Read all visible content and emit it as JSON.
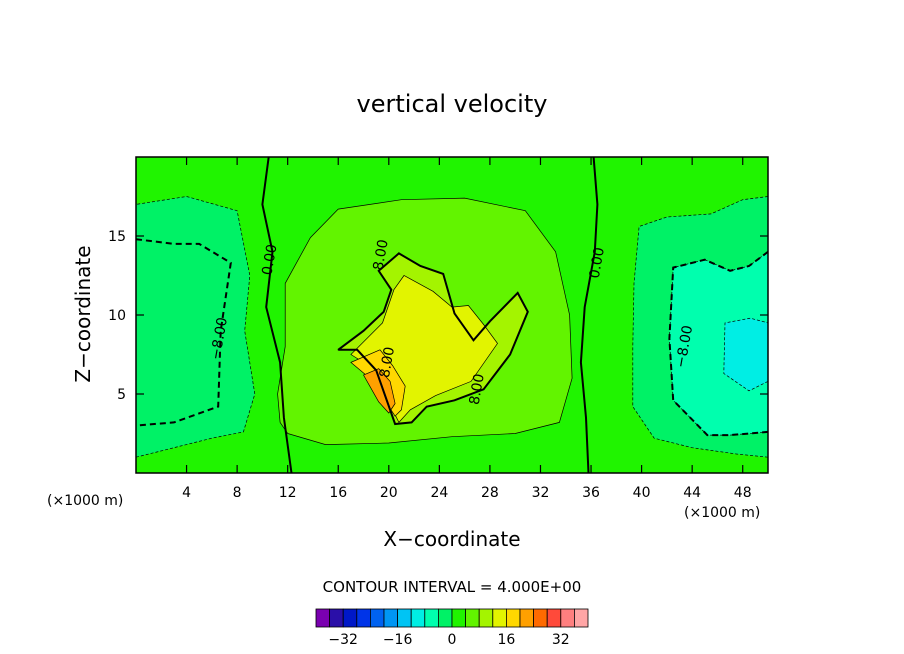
{
  "chart_data": {
    "type": "contour",
    "title": "vertical velocity",
    "xlabel": "X−coordinate",
    "ylabel": "Z−coordinate",
    "x_unit": "(×1000 m)",
    "y_unit": "(×1000 m)",
    "xlim": [
      0,
      50
    ],
    "ylim": [
      0,
      20
    ],
    "x_ticks": [
      4,
      8,
      12,
      16,
      20,
      24,
      28,
      32,
      36,
      40,
      44,
      48
    ],
    "y_ticks": [
      5,
      10,
      15
    ],
    "contour_interval_text": "CONTOUR INTERVAL = 4.000E+00",
    "contour_interval": 4,
    "colorbar": {
      "levels": [
        -36,
        -32,
        -28,
        -24,
        -20,
        -16,
        -12,
        -8,
        -4,
        0,
        4,
        8,
        12,
        16,
        20,
        24,
        28,
        32,
        36
      ],
      "colors": [
        "#7a00b0",
        "#2a0fa8",
        "#0018c8",
        "#0034e8",
        "#0062f0",
        "#0096f4",
        "#00c4f4",
        "#00eee4",
        "#00ffae",
        "#00f266",
        "#20f400",
        "#62f400",
        "#a4f400",
        "#e2f400",
        "#ffd800",
        "#ffa000",
        "#ff6a00",
        "#ff4a3a",
        "#ff7f7f",
        "#ffa6a6"
      ],
      "tick_labels": [
        "−32",
        "−16",
        "0",
        "16",
        "32"
      ],
      "tick_values": [
        -32,
        -16,
        0,
        16,
        32
      ]
    },
    "contour_labels": [
      {
        "text": "0.00",
        "x": 10.6,
        "y": 13.5
      },
      {
        "text": "−8.00",
        "x": 6.6,
        "y": 8.5
      },
      {
        "text": "8.00",
        "x": 19.4,
        "y": 13.8
      },
      {
        "text": "8.00",
        "x": 19.9,
        "y": 7.0
      },
      {
        "text": "8.00",
        "x": 27.0,
        "y": 5.3
      },
      {
        "text": "0.00",
        "x": 36.5,
        "y": 13.3
      },
      {
        "text": "−8.00",
        "x": 43.4,
        "y": 8.0
      }
    ],
    "regions": [
      {
        "value": -12,
        "points": [
          [
            0,
            6.5
          ],
          [
            2.5,
            6.5
          ],
          [
            3.5,
            9.5
          ],
          [
            2.5,
            13
          ],
          [
            0,
            13.5
          ]
        ]
      },
      {
        "value": -8,
        "points": [
          [
            0,
            3
          ],
          [
            3,
            3.2
          ],
          [
            6.5,
            4.2
          ],
          [
            6.7,
            9
          ],
          [
            7.5,
            13.3
          ],
          [
            5,
            14.5
          ],
          [
            0,
            14.8
          ]
        ]
      },
      {
        "value": -4,
        "points": [
          [
            0,
            1
          ],
          [
            2.5,
            1.5
          ],
          [
            6,
            2.2
          ],
          [
            8.5,
            2.6
          ],
          [
            9.4,
            5
          ],
          [
            8.6,
            9
          ],
          [
            9,
            12.5
          ],
          [
            8,
            16.6
          ],
          [
            4,
            17.5
          ],
          [
            0,
            17
          ]
        ]
      },
      {
        "value": 4,
        "points": [
          [
            12,
            2.5
          ],
          [
            15,
            1.8
          ],
          [
            20,
            1.9
          ],
          [
            25,
            2.3
          ],
          [
            30,
            2.5
          ],
          [
            33.5,
            3.2
          ],
          [
            34.5,
            6
          ],
          [
            34.3,
            10
          ],
          [
            33.2,
            14
          ],
          [
            30.8,
            16.6
          ],
          [
            26,
            17.4
          ],
          [
            21,
            17.3
          ],
          [
            16,
            16.7
          ],
          [
            13.8,
            14.9
          ],
          [
            11.8,
            12
          ],
          [
            11.8,
            8
          ],
          [
            11.2,
            5
          ],
          [
            11.4,
            3.2
          ]
        ]
      },
      {
        "value": 8,
        "points": [
          [
            16,
            7.8
          ],
          [
            17.5,
            7.8
          ],
          [
            19,
            6.5
          ],
          [
            20.5,
            3.1
          ],
          [
            21.8,
            3.2
          ],
          [
            23,
            4.2
          ],
          [
            25.2,
            4.6
          ],
          [
            27.5,
            5.3
          ],
          [
            29.6,
            7.5
          ],
          [
            31,
            10.2
          ],
          [
            30.2,
            11.4
          ],
          [
            28,
            9.6
          ],
          [
            26.7,
            8.4
          ],
          [
            25.2,
            10.1
          ],
          [
            24.3,
            12.6
          ],
          [
            22.5,
            13.1
          ],
          [
            20.8,
            13.9
          ],
          [
            19.2,
            12.8
          ],
          [
            20.2,
            11.6
          ],
          [
            19.6,
            10.2
          ],
          [
            18,
            9
          ]
        ]
      },
      {
        "value": 12,
        "points": [
          [
            17,
            7.5
          ],
          [
            18.8,
            6.6
          ],
          [
            20,
            4.5
          ],
          [
            20.8,
            3.2
          ],
          [
            21.7,
            4
          ],
          [
            23.7,
            4.9
          ],
          [
            26.5,
            5.8
          ],
          [
            28.6,
            8.2
          ],
          [
            27.5,
            9.4
          ],
          [
            26.3,
            10.6
          ],
          [
            25,
            10.5
          ],
          [
            23.5,
            11.5
          ],
          [
            21.2,
            12.5
          ],
          [
            20.4,
            11.6
          ],
          [
            19.5,
            9.5
          ]
        ]
      },
      {
        "value": 16,
        "points": [
          [
            17,
            7
          ],
          [
            18.5,
            6
          ],
          [
            20,
            4.2
          ],
          [
            20.5,
            3.6
          ],
          [
            21,
            4
          ],
          [
            21.3,
            5.5
          ],
          [
            20.3,
            6.8
          ],
          [
            19.3,
            7.8
          ]
        ]
      },
      {
        "value": 20,
        "points": [
          [
            18,
            6.2
          ],
          [
            19.2,
            4.5
          ],
          [
            20,
            3.8
          ],
          [
            20.5,
            4.4
          ],
          [
            20.1,
            5.8
          ],
          [
            19.2,
            6.6
          ]
        ]
      },
      {
        "value": -4,
        "points": [
          [
            50,
            1
          ],
          [
            47.5,
            1.2
          ],
          [
            44,
            1.6
          ],
          [
            41,
            2.2
          ],
          [
            39.3,
            4.2
          ],
          [
            39.3,
            8
          ],
          [
            39.4,
            12
          ],
          [
            39.8,
            15.6
          ],
          [
            42,
            16.2
          ],
          [
            45.5,
            16.4
          ],
          [
            48,
            17.3
          ],
          [
            50,
            17.5
          ]
        ]
      },
      {
        "value": -8,
        "points": [
          [
            50,
            2.6
          ],
          [
            47,
            2.4
          ],
          [
            45.2,
            2.4
          ],
          [
            42.5,
            4.6
          ],
          [
            42.2,
            8.5
          ],
          [
            42.5,
            13
          ],
          [
            45,
            13.5
          ],
          [
            47,
            12.8
          ],
          [
            48.5,
            13.1
          ],
          [
            50,
            14
          ]
        ]
      },
      {
        "value": -12,
        "points": [
          [
            50,
            5.8
          ],
          [
            48.5,
            5.2
          ],
          [
            46.5,
            6.3
          ],
          [
            46.6,
            9.5
          ],
          [
            48.6,
            9.8
          ],
          [
            50,
            9.5
          ]
        ]
      }
    ],
    "contour_lines": [
      {
        "value": 0,
        "style": "solid",
        "points": [
          [
            10.5,
            20
          ],
          [
            10,
            17
          ],
          [
            10.8,
            14
          ],
          [
            10.3,
            10.5
          ],
          [
            11.4,
            7
          ],
          [
            11.7,
            3.5
          ],
          [
            12.3,
            0
          ]
        ]
      },
      {
        "value": 0,
        "style": "solid",
        "points": [
          [
            36.2,
            20
          ],
          [
            36.5,
            17
          ],
          [
            36.3,
            14
          ],
          [
            35.5,
            10.5
          ],
          [
            35.2,
            7
          ],
          [
            35.6,
            3.5
          ],
          [
            35.8,
            0
          ]
        ]
      },
      {
        "value": -8,
        "style": "dashed",
        "points": [
          [
            0,
            14.8
          ],
          [
            3,
            14.5
          ],
          [
            5,
            14.5
          ],
          [
            7.5,
            13.3
          ],
          [
            6.7,
            9
          ],
          [
            6.5,
            4.2
          ],
          [
            3,
            3.2
          ],
          [
            0,
            3
          ]
        ]
      },
      {
        "value": -8,
        "style": "dashed",
        "points": [
          [
            50,
            14
          ],
          [
            48.5,
            13.1
          ],
          [
            47,
            12.8
          ],
          [
            45,
            13.5
          ],
          [
            42.5,
            13
          ],
          [
            42.2,
            8.5
          ],
          [
            42.5,
            4.6
          ],
          [
            45.2,
            2.4
          ],
          [
            47,
            2.4
          ],
          [
            50,
            2.6
          ]
        ]
      },
      {
        "value": 8,
        "style": "solid",
        "points": [
          [
            16,
            7.8
          ],
          [
            17.5,
            7.8
          ],
          [
            19,
            6.5
          ],
          [
            20.5,
            3.1
          ],
          [
            21.8,
            3.2
          ],
          [
            23,
            4.2
          ],
          [
            25.2,
            4.6
          ],
          [
            27.5,
            5.3
          ],
          [
            29.6,
            7.5
          ],
          [
            31,
            10.2
          ],
          [
            30.2,
            11.4
          ],
          [
            28,
            9.6
          ],
          [
            26.7,
            8.4
          ],
          [
            25.2,
            10.1
          ],
          [
            24.3,
            12.6
          ],
          [
            22.5,
            13.1
          ],
          [
            20.8,
            13.9
          ],
          [
            19.2,
            12.8
          ],
          [
            20.2,
            11.6
          ],
          [
            19.6,
            10.2
          ],
          [
            18,
            9
          ],
          [
            16,
            7.8
          ]
        ]
      }
    ]
  }
}
